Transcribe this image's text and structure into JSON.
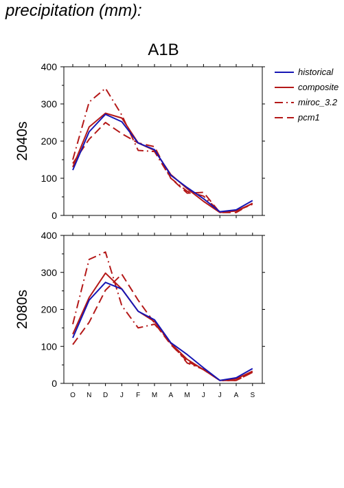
{
  "page": {
    "title": "precipitation (mm):"
  },
  "scenario": "A1B",
  "colors": {
    "historical": "#1515b4",
    "models": "#b41818"
  },
  "legend": [
    {
      "key": "historical",
      "label": "historical",
      "dash": "solid",
      "color": "#1515b4"
    },
    {
      "key": "composite",
      "label": "composite",
      "dash": "solid",
      "color": "#b41818"
    },
    {
      "key": "miroc",
      "label": "miroc_3.2",
      "dash": "dashdot",
      "color": "#b41818"
    },
    {
      "key": "pcm1",
      "label": "pcm1",
      "dash": "dashed",
      "color": "#b41818"
    }
  ],
  "chart_data": [
    {
      "type": "line",
      "panel_label": "2040s",
      "categories": [
        "O",
        "N",
        "D",
        "J",
        "F",
        "M",
        "A",
        "M",
        "J",
        "J",
        "A",
        "S"
      ],
      "ylim": [
        0,
        400
      ],
      "yticks": [
        "0",
        "100",
        "200",
        "300",
        "400"
      ],
      "series": [
        {
          "name": "historical",
          "values": [
            122,
            225,
            272,
            252,
            195,
            177,
            108,
            75,
            45,
            10,
            15,
            40
          ]
        },
        {
          "name": "composite",
          "values": [
            130,
            238,
            275,
            262,
            195,
            175,
            110,
            72,
            38,
            8,
            12,
            32
          ]
        },
        {
          "name": "miroc_3.2",
          "values": [
            150,
            305,
            342,
            270,
            175,
            172,
            100,
            65,
            52,
            10,
            12,
            30
          ]
        },
        {
          "name": "pcm1",
          "values": [
            140,
            205,
            250,
            220,
            195,
            185,
            100,
            60,
            62,
            8,
            8,
            33
          ]
        }
      ]
    },
    {
      "type": "line",
      "panel_label": "2080s",
      "categories": [
        "O",
        "N",
        "D",
        "J",
        "F",
        "M",
        "A",
        "M",
        "J",
        "J",
        "A",
        "S"
      ],
      "ylim": [
        0,
        400
      ],
      "yticks": [
        "0",
        "100",
        "200",
        "300",
        "400"
      ],
      "series": [
        {
          "name": "historical",
          "values": [
            123,
            225,
            273,
            255,
            195,
            172,
            110,
            78,
            42,
            8,
            15,
            40
          ]
        },
        {
          "name": "composite",
          "values": [
            133,
            232,
            298,
            255,
            195,
            167,
            108,
            65,
            37,
            8,
            12,
            33
          ]
        },
        {
          "name": "miroc_3.2",
          "values": [
            160,
            335,
            355,
            210,
            150,
            160,
            110,
            55,
            38,
            8,
            8,
            30
          ]
        },
        {
          "name": "pcm1",
          "values": [
            105,
            165,
            252,
            295,
            225,
            163,
            105,
            60,
            37,
            8,
            8,
            30
          ]
        }
      ]
    }
  ]
}
